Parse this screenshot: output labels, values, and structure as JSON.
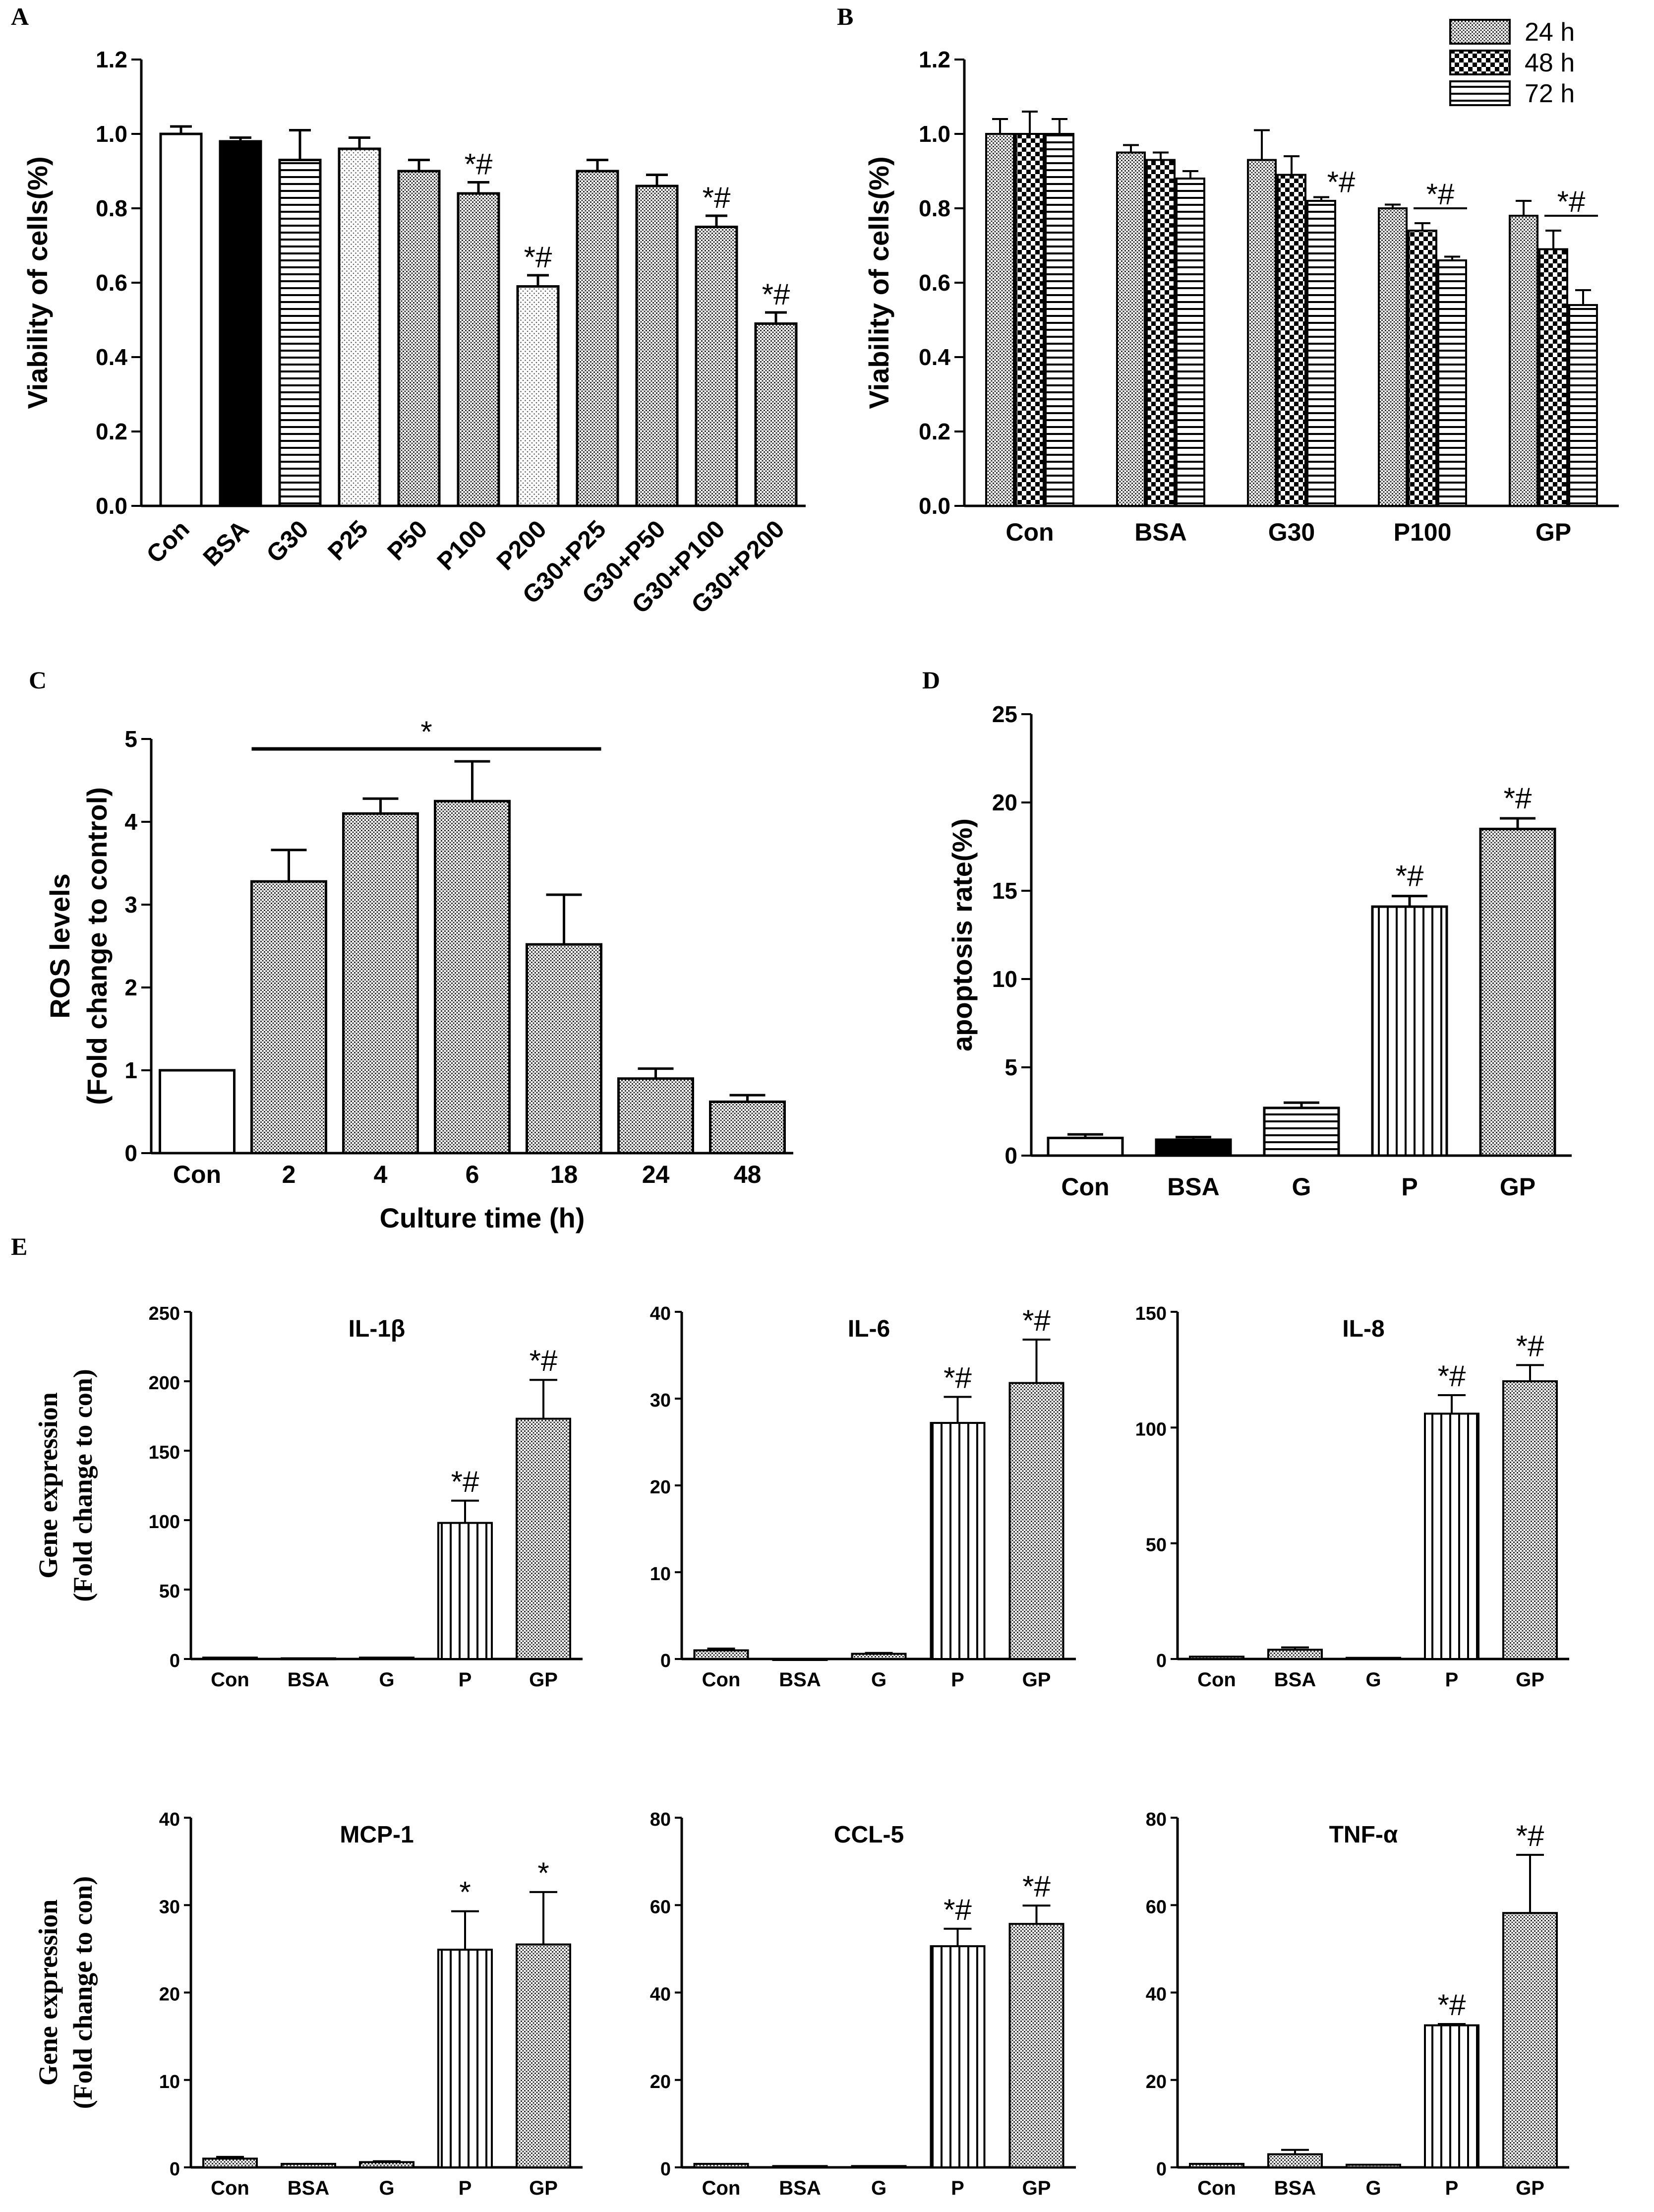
{
  "colors": {
    "ink": "#000000",
    "paper": "#ffffff"
  },
  "chart_data": [
    {
      "panel": "A",
      "type": "bar",
      "ylabel": "Viability of cells(%)",
      "ylim": [
        0,
        1.2
      ],
      "yticks": [
        "0.0",
        "0.2",
        "0.4",
        "0.6",
        "0.8",
        "1.0",
        "1.2"
      ],
      "categories": [
        "Con",
        "BSA",
        "G30",
        "P25",
        "P50",
        "P100",
        "P200",
        "G30+P25",
        "G30+P50",
        "G30+P100",
        "G30+P200"
      ],
      "values": [
        1.0,
        0.98,
        0.93,
        0.96,
        0.9,
        0.84,
        0.59,
        0.9,
        0.86,
        0.75,
        0.49
      ],
      "errors": [
        0.02,
        0.01,
        0.08,
        0.03,
        0.03,
        0.03,
        0.03,
        0.03,
        0.03,
        0.03,
        0.03
      ],
      "patterns": [
        "white",
        "black",
        "hlines",
        "dots",
        "dense",
        "dense",
        "dots",
        "dense",
        "dense",
        "dense",
        "dense"
      ],
      "annotations": [
        "",
        "",
        "",
        "",
        "",
        "*#",
        "*#",
        "",
        "",
        "*#",
        "*#"
      ]
    },
    {
      "panel": "B",
      "type": "bar",
      "ylabel": "Viability of cells(%)",
      "ylim": [
        0,
        1.2
      ],
      "yticks": [
        "0.0",
        "0.2",
        "0.4",
        "0.6",
        "0.8",
        "1.0",
        "1.2"
      ],
      "categories": [
        "Con",
        "BSA",
        "G30",
        "P100",
        "GP"
      ],
      "series": [
        {
          "name": "24 h",
          "pattern": "dense",
          "values": [
            1.0,
            0.95,
            0.93,
            0.8,
            0.78
          ],
          "errors": [
            0.04,
            0.02,
            0.08,
            0.01,
            0.04
          ]
        },
        {
          "name": "48 h",
          "pattern": "check",
          "values": [
            1.0,
            0.93,
            0.89,
            0.74,
            0.69
          ],
          "errors": [
            0.06,
            0.02,
            0.05,
            0.02,
            0.05
          ]
        },
        {
          "name": "72 h",
          "pattern": "hlines",
          "values": [
            1.0,
            0.88,
            0.82,
            0.66,
            0.54
          ],
          "errors": [
            0.04,
            0.02,
            0.01,
            0.01,
            0.04
          ]
        }
      ],
      "annotations": [
        {
          "category": 2,
          "series": 2,
          "text": "*#"
        },
        {
          "category": 3,
          "series_from": 1,
          "series_to": 2,
          "text": "*#"
        },
        {
          "category": 4,
          "series_from": 1,
          "series_to": 2,
          "text": "*#"
        }
      ],
      "legend": "top-right"
    },
    {
      "panel": "C",
      "type": "bar",
      "ylabel_line1": "ROS levels",
      "ylabel_line2": "(Fold change to control)",
      "xlabel": "Culture time (h)",
      "ylim": [
        0,
        5
      ],
      "yticks": [
        "0",
        "1",
        "2",
        "3",
        "4",
        "5"
      ],
      "categories": [
        "Con",
        "2",
        "4",
        "6",
        "18",
        "24",
        "48"
      ],
      "values": [
        1.0,
        3.28,
        4.1,
        4.25,
        2.52,
        0.9,
        0.62
      ],
      "errors": [
        0.0,
        0.38,
        0.18,
        0.48,
        0.6,
        0.12,
        0.08
      ],
      "patterns": [
        "white",
        "dense",
        "dense",
        "dense",
        "dense",
        "dense",
        "dense"
      ],
      "bracket": {
        "from": 1,
        "to": 4,
        "text": "*"
      }
    },
    {
      "panel": "D",
      "type": "bar",
      "ylabel": "apoptosis rate(%)",
      "ylim": [
        0,
        25
      ],
      "yticks": [
        "0",
        "5",
        "10",
        "15",
        "20",
        "25"
      ],
      "categories": [
        "Con",
        "BSA",
        "G",
        "P",
        "GP"
      ],
      "values": [
        1.0,
        0.9,
        2.7,
        14.1,
        18.5
      ],
      "errors": [
        0.2,
        0.15,
        0.3,
        0.6,
        0.6
      ],
      "patterns": [
        "white",
        "black",
        "hlines",
        "vlines",
        "dense"
      ],
      "annotations": [
        "",
        "",
        "",
        "*#",
        "*#"
      ]
    },
    {
      "panel": "E",
      "type": "bar",
      "ylabel_line1": "Gene expression",
      "ylabel_line2": "(Fold change to con)",
      "subplots": [
        {
          "title": "IL-1β",
          "ylim": [
            0,
            250
          ],
          "yticks": [
            "0",
            "50",
            "100",
            "150",
            "200",
            "250"
          ],
          "categories": [
            "Con",
            "BSA",
            "G",
            "P",
            "GP"
          ],
          "values": [
            1,
            0.5,
            1,
            98,
            173
          ],
          "errors": [
            0,
            0,
            0,
            16,
            28
          ],
          "patterns": [
            "dense",
            "dense",
            "dense",
            "vlines",
            "dense"
          ],
          "annotations": [
            "",
            "",
            "",
            "*#",
            "*#"
          ]
        },
        {
          "title": "IL-6",
          "ylim": [
            0,
            40
          ],
          "yticks": [
            "0",
            "10",
            "20",
            "30",
            "40"
          ],
          "categories": [
            "Con",
            "BSA",
            "G",
            "P",
            "GP"
          ],
          "values": [
            1.0,
            0,
            0.6,
            27.2,
            31.8
          ],
          "errors": [
            0.2,
            0,
            0.1,
            3.0,
            5.0
          ],
          "patterns": [
            "dense",
            "dense",
            "dense",
            "vlines",
            "dense"
          ],
          "annotations": [
            "",
            "",
            "",
            "*#",
            "*#"
          ]
        },
        {
          "title": "IL-8",
          "ylim": [
            0,
            150
          ],
          "yticks": [
            "0",
            "50",
            "100",
            "150"
          ],
          "categories": [
            "Con",
            "BSA",
            "G",
            "P",
            "GP"
          ],
          "values": [
            1,
            4,
            0.5,
            106,
            120
          ],
          "errors": [
            0,
            1,
            0,
            8,
            7
          ],
          "patterns": [
            "dense",
            "dense",
            "dense",
            "vlines",
            "dense"
          ],
          "annotations": [
            "",
            "",
            "",
            "*#",
            "*#"
          ]
        },
        {
          "title": "MCP-1",
          "ylim": [
            0,
            40
          ],
          "yticks": [
            "0",
            "10",
            "20",
            "30",
            "40"
          ],
          "categories": [
            "Con",
            "BSA",
            "G",
            "P",
            "GP"
          ],
          "values": [
            1.0,
            0.4,
            0.6,
            24.9,
            25.5
          ],
          "errors": [
            0.2,
            0,
            0.1,
            4.4,
            6.0
          ],
          "patterns": [
            "dense",
            "dense",
            "dense",
            "vlines",
            "dense"
          ],
          "annotations": [
            "",
            "",
            "",
            "*",
            "*"
          ]
        },
        {
          "title": "CCL-5",
          "ylim": [
            0,
            80
          ],
          "yticks": [
            "0",
            "20",
            "40",
            "60",
            "80"
          ],
          "categories": [
            "Con",
            "BSA",
            "G",
            "P",
            "GP"
          ],
          "values": [
            0.8,
            0.3,
            0.3,
            50.6,
            55.7
          ],
          "errors": [
            0,
            0,
            0,
            4,
            4.2
          ],
          "patterns": [
            "dense",
            "dense",
            "dense",
            "vlines",
            "dense"
          ],
          "annotations": [
            "",
            "",
            "",
            "*#",
            "*#"
          ]
        },
        {
          "title": "TNF-α",
          "ylim": [
            0,
            80
          ],
          "yticks": [
            "0",
            "20",
            "40",
            "60",
            "80"
          ],
          "categories": [
            "Con",
            "BSA",
            "G",
            "P",
            "GP"
          ],
          "values": [
            0.8,
            3.0,
            0.6,
            32.5,
            58.2
          ],
          "errors": [
            0,
            1,
            0,
            0.3,
            13.3
          ],
          "patterns": [
            "dense",
            "dense",
            "dense",
            "vlines",
            "dense"
          ],
          "annotations": [
            "",
            "",
            "",
            "*#",
            "*#"
          ]
        }
      ]
    }
  ]
}
